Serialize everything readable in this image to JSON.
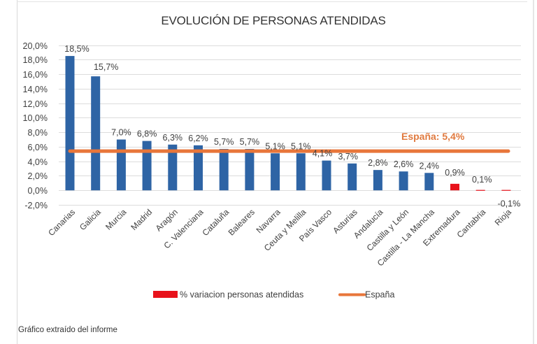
{
  "chart_data": {
    "type": "bar",
    "title": "EVOLUCIÓN DE PERSONAS ATENDIDAS",
    "xlabel": "",
    "ylabel": "",
    "ylim": [
      -2,
      20
    ],
    "yticks": [
      20,
      18,
      16,
      14,
      12,
      10,
      8,
      6,
      4,
      2,
      0,
      -2
    ],
    "ytick_labels": [
      "20,0%",
      "18,0%",
      "16,0%",
      "14,0%",
      "12,0%",
      "10,0%",
      "8,0%",
      "6,0%",
      "4,0%",
      "2,0%",
      "0,0%",
      "-2,0%"
    ],
    "grid": true,
    "categories": [
      "Canarias",
      "Galicia",
      "Murcia",
      "Madrid",
      "Aragón",
      "C. Valenciana",
      "Cataluña",
      "Baleares",
      "Navarra",
      "Ceuta y Melilla",
      "País Vasco",
      "Asturias",
      "Andalucía",
      "Castilla y León",
      "Castilla - La Mancha",
      "Extremadura",
      "Cantabria",
      "Rioja"
    ],
    "series": [
      {
        "name": "% variacion personas atendidas",
        "values": [
          18.5,
          15.7,
          7.0,
          6.8,
          6.3,
          6.2,
          5.7,
          5.7,
          5.1,
          5.1,
          4.1,
          3.7,
          2.8,
          2.6,
          2.4,
          0.9,
          0.1,
          -0.1
        ],
        "labels": [
          "18,5%",
          "15,7%",
          "7,0%",
          "6,8%",
          "6,3%",
          "6,2%",
          "5,7%",
          "5,7%",
          "5,1%",
          "5,1%",
          "4,1%",
          "3,7%",
          "2,8%",
          "2,6%",
          "2,4%",
          "0,9%",
          "0,1%",
          "-0,1%"
        ],
        "colors": [
          "#2e64a5",
          "#2e64a5",
          "#2e64a5",
          "#2e64a5",
          "#2e64a5",
          "#2e64a5",
          "#2e64a5",
          "#2e64a5",
          "#2e64a5",
          "#2e64a5",
          "#2e64a5",
          "#2e64a5",
          "#2e64a5",
          "#2e64a5",
          "#2e64a5",
          "#e8121b",
          "#e8121b",
          "#e8121b"
        ]
      },
      {
        "name": "España",
        "type": "line",
        "value": 5.4,
        "annotation": "España: 5,4%",
        "color": "#e8763a"
      }
    ],
    "legend": {
      "placement": "bottom",
      "entries": [
        {
          "label": "% variacion personas atendidas",
          "color": "#e8121b",
          "marker": "rect"
        },
        {
          "label": "España",
          "color": "#e8763a",
          "marker": "line"
        }
      ]
    }
  },
  "caption": "Gráfico extraído del informe"
}
